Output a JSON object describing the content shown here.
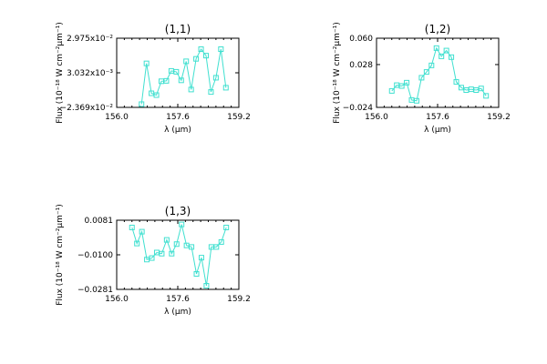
{
  "chart_data": [
    {
      "type": "line",
      "title": "(1,1)",
      "xlabel": "λ (μm)",
      "ylabel": "Flux (10⁻¹⁸ W cm⁻²μm⁻¹)",
      "xlim": [
        156.0,
        159.2
      ],
      "ylim": [
        -0.02369,
        0.02975
      ],
      "xticks": [
        156.0,
        157.6,
        159.2
      ],
      "xtick_labels": [
        "156.0",
        "157.6",
        "159.2"
      ],
      "yticks": [
        -0.02369,
        0.003032,
        0.02975
      ],
      "ytick_labels": [
        "−2.369x10⁻²",
        "3.032x10⁻³",
        "2.975x10⁻²"
      ],
      "color": "#40e0d0",
      "marker": "square",
      "x": [
        156.65,
        156.78,
        156.91,
        157.04,
        157.17,
        157.3,
        157.43,
        157.56,
        157.69,
        157.82,
        157.95,
        158.08,
        158.21,
        158.34,
        158.47,
        158.6,
        158.73,
        158.86
      ],
      "y": [
        -0.0212,
        0.0103,
        -0.0128,
        -0.0142,
        -0.0035,
        -0.0032,
        0.0045,
        0.0038,
        -0.0028,
        0.0119,
        -0.0099,
        0.0138,
        0.0213,
        0.0163,
        -0.0118,
        -0.0008,
        0.0213,
        -0.0085
      ]
    },
    {
      "type": "line",
      "title": "(1,2)",
      "xlabel": "λ (μm)",
      "ylabel": "Flux (10⁻¹⁸ W cm⁻²μm⁻¹)",
      "xlim": [
        156.0,
        159.2
      ],
      "ylim": [
        -0.024,
        0.06
      ],
      "xticks": [
        156.0,
        157.6,
        159.2
      ],
      "xtick_labels": [
        "156.0",
        "157.6",
        "159.2"
      ],
      "yticks": [
        -0.024,
        0.028,
        0.06
      ],
      "ytick_labels": [
        "−0.024",
        "0.028",
        "0.060"
      ],
      "color": "#40e0d0",
      "marker": "square",
      "x": [
        156.4,
        156.53,
        156.66,
        156.79,
        156.92,
        157.05,
        157.18,
        157.31,
        157.44,
        157.57,
        157.7,
        157.83,
        157.96,
        158.09,
        158.22,
        158.35,
        158.48,
        158.61,
        158.74,
        158.87
      ],
      "y": [
        -0.004,
        0.003,
        0.002,
        0.006,
        -0.015,
        -0.016,
        0.012,
        0.019,
        0.027,
        0.048,
        0.038,
        0.045,
        0.037,
        0.007,
        0.0,
        -0.003,
        -0.002,
        -0.003,
        -0.001,
        -0.01
      ]
    },
    {
      "type": "line",
      "title": "(1,3)",
      "xlabel": "λ (μm)",
      "ylabel": "Flux (10⁻¹⁸ W cm⁻²μm⁻¹)",
      "xlim": [
        156.0,
        159.2
      ],
      "ylim": [
        -0.0281,
        0.0081
      ],
      "xticks": [
        156.0,
        157.6,
        159.2
      ],
      "xtick_labels": [
        "156.0",
        "157.6",
        "159.2"
      ],
      "yticks": [
        -0.0281,
        -0.01,
        0.0081
      ],
      "ytick_labels": [
        "−0.0281",
        "−0.0100",
        "0.0081"
      ],
      "color": "#40e0d0",
      "marker": "square",
      "x": [
        156.4,
        156.53,
        156.66,
        156.79,
        156.92,
        157.05,
        157.18,
        157.31,
        157.44,
        157.57,
        157.7,
        157.83,
        157.96,
        158.09,
        158.22,
        158.35,
        158.48,
        158.61,
        158.74,
        158.87
      ],
      "y": [
        0.0043,
        -0.0041,
        0.0021,
        -0.0125,
        -0.0117,
        -0.0088,
        -0.0094,
        -0.0022,
        -0.0094,
        -0.0044,
        0.0059,
        -0.0051,
        -0.0059,
        -0.02,
        -0.0115,
        -0.0262,
        -0.0059,
        -0.0059,
        -0.0033,
        0.0043
      ]
    }
  ]
}
